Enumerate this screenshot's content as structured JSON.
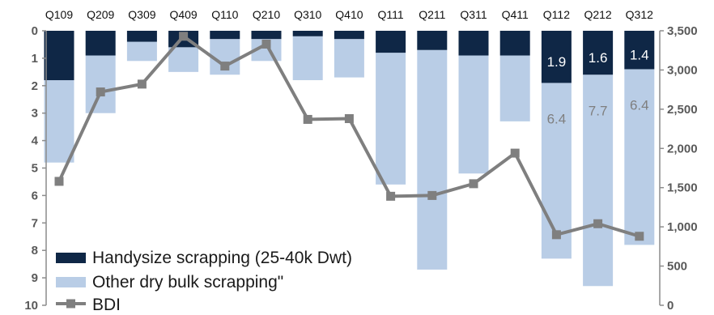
{
  "chart_data": {
    "type": "bar",
    "categories": [
      "Q109",
      "Q209",
      "Q309",
      "Q409",
      "Q110",
      "Q210",
      "Q310",
      "Q410",
      "Q111",
      "Q211",
      "Q311",
      "Q411",
      "Q112",
      "Q212",
      "Q312"
    ],
    "series": [
      {
        "name": "Handysize scrapping (25-40k Dwt)",
        "type": "bar",
        "axis": "left",
        "color": "#0f2746",
        "values": [
          1.8,
          0.9,
          0.4,
          0.6,
          0.3,
          0.3,
          0.2,
          0.3,
          0.8,
          0.7,
          0.9,
          0.9,
          1.9,
          1.6,
          1.4
        ]
      },
      {
        "name": "Other dry bulk scrapping\"",
        "type": "bar",
        "axis": "left",
        "color": "#b9cde6",
        "values": [
          3.0,
          2.1,
          0.7,
          0.9,
          1.3,
          0.8,
          1.6,
          1.4,
          4.8,
          8.0,
          4.3,
          2.4,
          6.4,
          7.7,
          6.4
        ]
      },
      {
        "name": "BDI",
        "type": "line",
        "axis": "right",
        "color": "#7f7f7f",
        "values": [
          1580,
          2720,
          2820,
          3430,
          3050,
          3330,
          2370,
          2380,
          1390,
          1400,
          1550,
          1940,
          900,
          1040,
          880
        ]
      }
    ],
    "left_axis": {
      "reversed": true,
      "ylim": [
        0,
        10
      ],
      "ticks": [
        "0",
        "1",
        "2",
        "3",
        "4",
        "5",
        "6",
        "7",
        "8",
        "9",
        "10"
      ]
    },
    "right_axis": {
      "ylim": [
        0,
        3500
      ],
      "ticks": [
        "0",
        "500",
        "1,000",
        "1,500",
        "2,000",
        "2,500",
        "3,000",
        "3,500"
      ]
    },
    "data_labels": {
      "handysize": [
        {
          "index": 12,
          "text": "1.9"
        },
        {
          "index": 13,
          "text": "1.6"
        },
        {
          "index": 14,
          "text": "1.4"
        }
      ],
      "other": [
        {
          "index": 12,
          "text": "6.4"
        },
        {
          "index": 13,
          "text": "7.7"
        },
        {
          "index": 14,
          "text": "6.4"
        }
      ]
    },
    "legend": {
      "placement": "bottom-left",
      "entries": [
        {
          "label": "Handysize scrapping (25-40k Dwt)",
          "symbol": "bar",
          "color": "#0f2746"
        },
        {
          "label": "Other dry bulk scrapping\"",
          "symbol": "bar",
          "color": "#b9cde6"
        },
        {
          "label": "BDI",
          "symbol": "line-square",
          "color": "#7f7f7f"
        }
      ]
    },
    "grid": false
  }
}
